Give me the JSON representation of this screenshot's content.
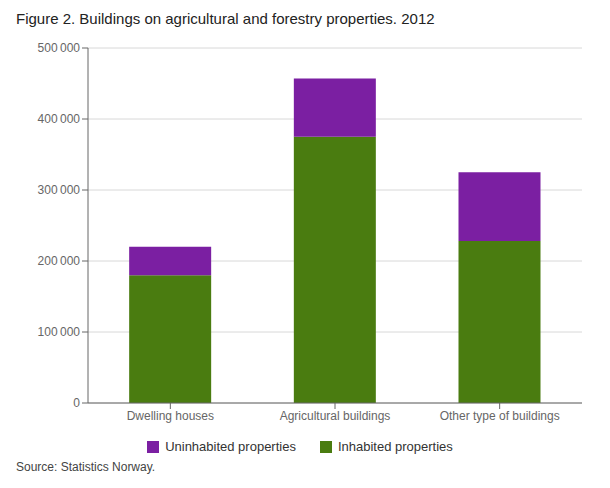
{
  "chart_data": {
    "type": "bar",
    "stacked": true,
    "title": "Figure 2. Buildings on agricultural and forestry properties. 2012",
    "categories": [
      "Dwelling houses",
      "Agricultural buildings",
      "Other type of buildings"
    ],
    "series": [
      {
        "name": "Inhabited properties",
        "color": "#4a7c10",
        "values": [
          180000,
          375000,
          228000
        ]
      },
      {
        "name": "Uninhabited properties",
        "color": "#7b1fa2",
        "values": [
          40000,
          82000,
          97000
        ]
      }
    ],
    "ylim": [
      0,
      500000
    ],
    "yticks": [
      0,
      {
        "value": 100000,
        "label": "100 000"
      },
      {
        "value": 200000,
        "label": "200 000"
      },
      {
        "value": 300000,
        "label": "300 000"
      },
      {
        "value": 400000,
        "label": "400 000"
      },
      {
        "value": 500000,
        "label": "500 000"
      }
    ],
    "grid": true,
    "legend": "bottom",
    "annotations": [
      "Source: Statistics Norway."
    ]
  }
}
